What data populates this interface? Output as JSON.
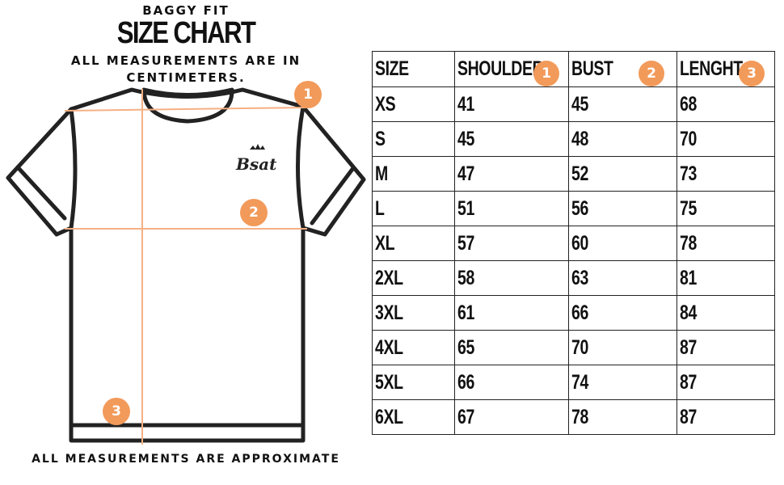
{
  "header": {
    "subtitle": "BAGGY FIT",
    "title": "SIZE CHART",
    "note": "ALL MEASUREMENTS ARE IN CENTIMETERS."
  },
  "footer": {
    "text": "ALL MEASUREMENTS ARE APPROXIMATE"
  },
  "shirt": {
    "logo_text": "Bsat",
    "markers": [
      "1",
      "2",
      "3"
    ],
    "accent_color": "#f29a5a",
    "line_color": "#f5b083"
  },
  "table": {
    "headers": [
      {
        "label": "SIZE",
        "badge": ""
      },
      {
        "label": "SHOULDER",
        "badge": "1"
      },
      {
        "label": "BUST",
        "badge": "2"
      },
      {
        "label": "LENGHT",
        "badge": "3"
      }
    ],
    "rows": [
      [
        "XS",
        "41",
        "45",
        "68"
      ],
      [
        "S",
        "45",
        "48",
        "70"
      ],
      [
        "M",
        "47",
        "52",
        "73"
      ],
      [
        "L",
        "51",
        "56",
        "75"
      ],
      [
        "XL",
        "57",
        "60",
        "78"
      ],
      [
        "2XL",
        "58",
        "63",
        "81"
      ],
      [
        "3XL",
        "61",
        "66",
        "84"
      ],
      [
        "4XL",
        "65",
        "70",
        "87"
      ],
      [
        "5XL",
        "66",
        "74",
        "87"
      ],
      [
        "6XL",
        "67",
        "78",
        "87"
      ]
    ]
  }
}
